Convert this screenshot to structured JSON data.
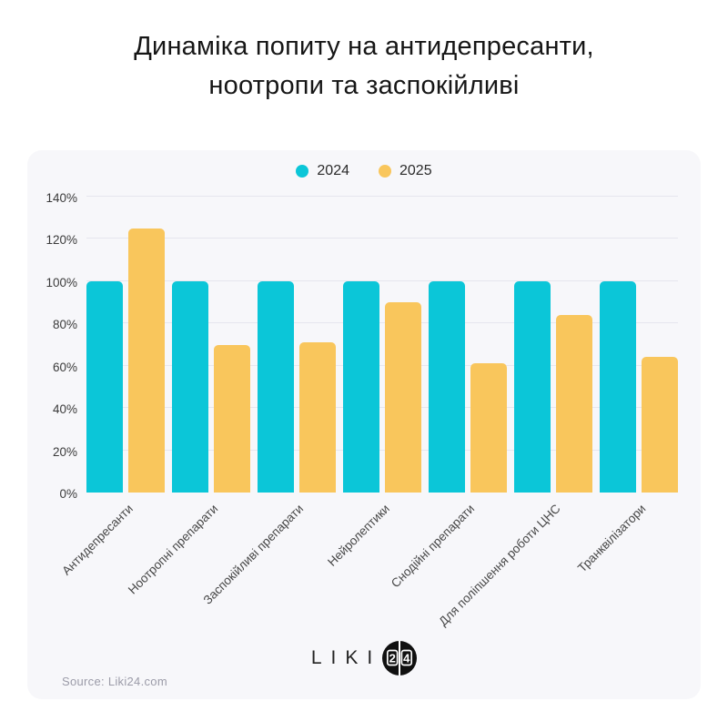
{
  "title_lines": [
    "Динаміка попиту на антидепресанти,",
    "ноотропи та заспокійливі"
  ],
  "chart_data": {
    "type": "bar",
    "categories": [
      "Антидепресанти",
      "Ноотропні препарати",
      "Заспокійливі препарати",
      "Нейролептики",
      "Снодійні препарати",
      "Для поліпшення роботи ЦНС",
      "Транквілізатори"
    ],
    "series": [
      {
        "name": "2024",
        "color": "#0bc6d8",
        "values": [
          100,
          100,
          100,
          100,
          100,
          100,
          100
        ]
      },
      {
        "name": "2025",
        "color": "#f9c65c",
        "values": [
          125,
          70,
          71,
          90,
          61,
          84,
          64
        ]
      }
    ],
    "title": "Динаміка попиту на антидепресанти, ноотропи та заспокійливі",
    "xlabel": "",
    "ylabel": "",
    "ylim": [
      0,
      140
    ],
    "yticks": [
      0,
      20,
      40,
      60,
      80,
      100,
      120,
      140
    ],
    "ytick_suffix": "%",
    "grid": true,
    "legend_position": "top-center"
  },
  "logo": {
    "brand": "LIKI",
    "digit_left": "2",
    "digit_right": "4"
  },
  "footer": {
    "source": "Source: Liki24.com"
  },
  "colors": {
    "card_bg": "#f7f7fa",
    "grid": "#e6e6ee",
    "series_2024": "#0bc6d8",
    "series_2025": "#f9c65c",
    "title_text": "#161616",
    "axis_text": "#3a3a3a",
    "source_text": "#9b9ba8"
  }
}
